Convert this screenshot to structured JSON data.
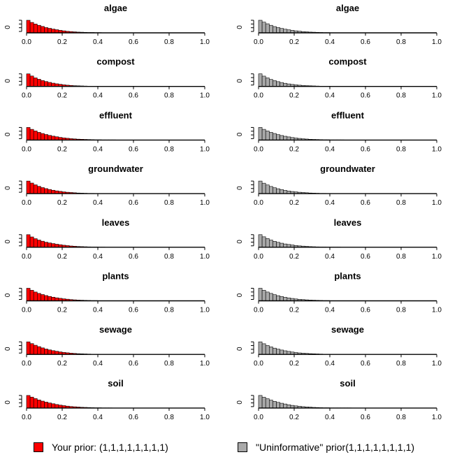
{
  "chart_data": {
    "type": "bar",
    "chart_kind": "histogram-grid",
    "panels_per_column": 8,
    "columns": [
      {
        "series": "Your prior: (1,1,1,1,1,1,1,1)",
        "color": "#ff0000"
      },
      {
        "series": "\"Uninformative\" prior(1,1,1,1,1,1,1,1)",
        "color": "#a9a9a9"
      }
    ],
    "categories": [
      "algae",
      "compost",
      "effluent",
      "groundwater",
      "leaves",
      "plants",
      "sewage",
      "soil"
    ],
    "xlim": [
      0,
      1
    ],
    "x_ticks": [
      "0.0",
      "0.2",
      "0.4",
      "0.6",
      "0.8",
      "1.0"
    ],
    "y_tick_label": "0",
    "bin_width": 0.02,
    "histograms_left": [
      [
        1.0,
        0.83,
        0.7,
        0.6,
        0.51,
        0.42,
        0.36,
        0.3,
        0.25,
        0.2,
        0.16,
        0.12,
        0.1,
        0.08,
        0.06,
        0.05,
        0.04,
        0.03,
        0.03,
        0.02,
        0.02,
        0.01,
        0.01,
        0.01,
        0.01,
        0.01,
        0.01,
        0.01
      ],
      [
        1.0,
        0.83,
        0.68,
        0.57,
        0.47,
        0.39,
        0.32,
        0.26,
        0.21,
        0.17,
        0.13,
        0.1,
        0.08,
        0.06,
        0.05,
        0.04,
        0.03,
        0.02,
        0.02,
        0.01,
        0.01,
        0.01
      ],
      [
        1.0,
        0.85,
        0.72,
        0.61,
        0.52,
        0.44,
        0.37,
        0.31,
        0.26,
        0.21,
        0.17,
        0.14,
        0.11,
        0.09,
        0.07,
        0.06,
        0.05,
        0.04,
        0.03,
        0.02,
        0.02,
        0.01,
        0.01,
        0.01,
        0.01
      ],
      [
        1.0,
        0.84,
        0.7,
        0.58,
        0.48,
        0.4,
        0.33,
        0.27,
        0.22,
        0.18,
        0.14,
        0.11,
        0.09,
        0.07,
        0.05,
        0.04,
        0.03,
        0.02,
        0.02,
        0.01,
        0.01,
        0.01
      ],
      [
        1.0,
        0.82,
        0.68,
        0.57,
        0.48,
        0.4,
        0.34,
        0.29,
        0.24,
        0.2,
        0.16,
        0.13,
        0.1,
        0.08,
        0.06,
        0.05,
        0.04,
        0.03,
        0.02,
        0.02,
        0.01,
        0.01
      ],
      [
        1.0,
        0.84,
        0.7,
        0.59,
        0.5,
        0.42,
        0.35,
        0.29,
        0.24,
        0.2,
        0.16,
        0.13,
        0.1,
        0.08,
        0.06,
        0.05,
        0.04,
        0.03,
        0.02,
        0.02,
        0.01,
        0.01,
        0.01,
        0.01,
        0.01,
        0.01
      ],
      [
        1.0,
        0.86,
        0.73,
        0.62,
        0.52,
        0.43,
        0.36,
        0.3,
        0.25,
        0.2,
        0.16,
        0.13,
        0.1,
        0.08,
        0.06,
        0.05,
        0.04,
        0.03,
        0.02,
        0.02,
        0.01,
        0.01
      ],
      [
        1.0,
        0.87,
        0.75,
        0.64,
        0.55,
        0.47,
        0.4,
        0.34,
        0.28,
        0.23,
        0.19,
        0.15,
        0.12,
        0.1,
        0.08,
        0.06,
        0.05,
        0.04,
        0.03,
        0.02,
        0.02,
        0.01,
        0.01,
        0.01
      ]
    ],
    "histograms_right": [
      [
        1.0,
        0.85,
        0.72,
        0.6,
        0.5,
        0.42,
        0.35,
        0.29,
        0.24,
        0.2,
        0.16,
        0.13,
        0.1,
        0.08,
        0.06,
        0.05,
        0.04,
        0.03,
        0.02,
        0.02,
        0.01,
        0.01,
        0.01,
        0.01,
        0.01,
        0.01,
        0.01
      ],
      [
        1.0,
        0.82,
        0.68,
        0.56,
        0.46,
        0.38,
        0.31,
        0.25,
        0.2,
        0.16,
        0.13,
        0.1,
        0.08,
        0.06,
        0.05,
        0.04,
        0.03,
        0.02,
        0.02,
        0.01,
        0.01
      ],
      [
        1.0,
        0.85,
        0.72,
        0.61,
        0.52,
        0.43,
        0.36,
        0.3,
        0.25,
        0.2,
        0.16,
        0.13,
        0.1,
        0.08,
        0.06,
        0.05,
        0.04,
        0.03,
        0.02,
        0.02,
        0.01,
        0.01,
        0.01,
        0.01
      ],
      [
        1.0,
        0.83,
        0.69,
        0.57,
        0.47,
        0.39,
        0.32,
        0.26,
        0.21,
        0.17,
        0.14,
        0.11,
        0.09,
        0.07,
        0.05,
        0.04,
        0.03,
        0.02,
        0.02,
        0.01
      ],
      [
        1.0,
        0.83,
        0.69,
        0.57,
        0.47,
        0.39,
        0.32,
        0.26,
        0.22,
        0.18,
        0.14,
        0.11,
        0.09,
        0.07,
        0.05,
        0.04,
        0.03,
        0.02,
        0.02,
        0.01,
        0.01,
        0.01,
        0.01
      ],
      [
        1.0,
        0.84,
        0.7,
        0.59,
        0.49,
        0.41,
        0.34,
        0.28,
        0.23,
        0.19,
        0.15,
        0.12,
        0.1,
        0.08,
        0.06,
        0.05,
        0.04,
        0.03,
        0.02,
        0.02,
        0.01,
        0.01,
        0.01,
        0.01,
        0.01,
        0.01,
        0.01
      ],
      [
        1.0,
        0.85,
        0.71,
        0.6,
        0.5,
        0.42,
        0.35,
        0.29,
        0.24,
        0.19,
        0.15,
        0.12,
        0.1,
        0.08,
        0.06,
        0.05,
        0.04,
        0.03,
        0.02,
        0.02,
        0.01,
        0.01
      ],
      [
        1.0,
        0.86,
        0.74,
        0.63,
        0.53,
        0.45,
        0.38,
        0.32,
        0.26,
        0.21,
        0.17,
        0.14,
        0.11,
        0.09,
        0.07,
        0.05,
        0.04,
        0.03,
        0.02,
        0.02,
        0.01,
        0.01,
        0.01,
        0.01,
        0.01,
        0.01
      ]
    ],
    "legend": [
      {
        "label": "Your prior: (1,1,1,1,1,1,1,1)",
        "color": "#ff0000"
      },
      {
        "label": "\"Uninformative\" prior(1,1,1,1,1,1,1,1)",
        "color": "#a9a9a9"
      }
    ],
    "grid": false,
    "legend_placement": "bottom"
  }
}
